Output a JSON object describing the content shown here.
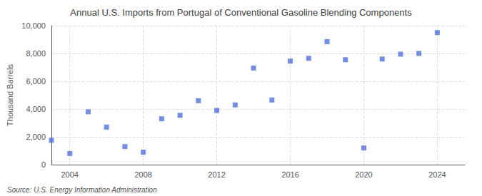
{
  "chart_data": {
    "type": "scatter",
    "title": "Annual U.S. Imports from Portugal of Conventional Gasoline Blending Components",
    "ylabel": "Thousand Barrels",
    "annotations": [
      "Source: U.S. Energy Information Administration"
    ],
    "x": [
      2003,
      2004,
      2005,
      2006,
      2007,
      2008,
      2009,
      2010,
      2011,
      2012,
      2013,
      2014,
      2015,
      2016,
      2017,
      2018,
      2019,
      2020,
      2021,
      2022,
      2023,
      2024
    ],
    "values": [
      1750,
      800,
      3800,
      2700,
      1300,
      900,
      3300,
      3550,
      4600,
      3900,
      4300,
      6950,
      4650,
      7450,
      7650,
      8850,
      7550,
      1200,
      7600,
      7950,
      8000,
      9500
    ],
    "marker": "square",
    "xlim": [
      2003.0,
      2025.5
    ],
    "xticks": [
      2004,
      2008,
      2012,
      2016,
      2020,
      2024
    ],
    "ylim": [
      0,
      10000
    ],
    "yticks": [
      0,
      {
        "value": 2000,
        "label": "2,000"
      },
      {
        "value": 4000,
        "label": "4,000"
      },
      {
        "value": 6000,
        "label": "6,000"
      },
      {
        "value": 8000,
        "label": "8,000"
      },
      {
        "value": 10000,
        "label": "10,000"
      }
    ],
    "grid": true
  }
}
